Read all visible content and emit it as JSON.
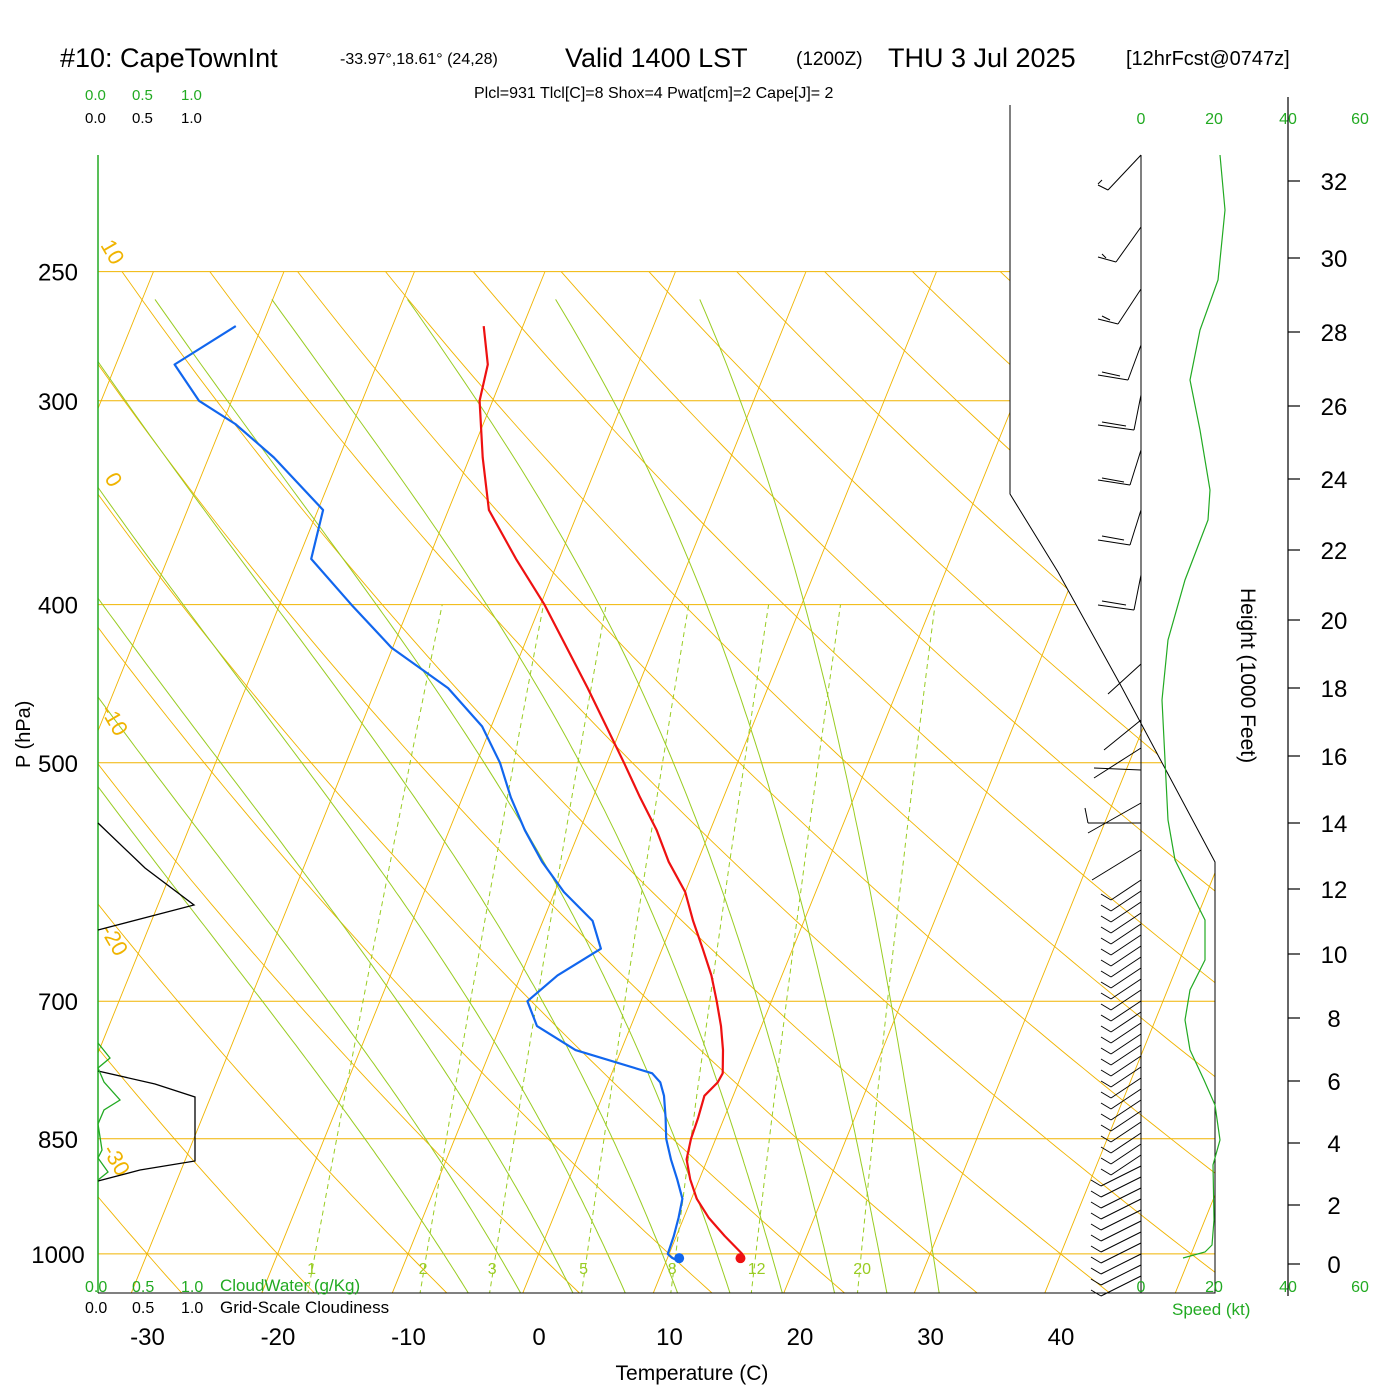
{
  "header": {
    "station": "#10: CapeTownInt",
    "coords": "-33.97°,18.61° (24,28)",
    "valid": "Valid 1400 LST",
    "zulu": "(1200Z)",
    "date": "THU 3 Jul 2025",
    "forecast": "[12hrFcst@0747z]",
    "indices": "Plcl=931 Tlcl[C]=8 Shox=4 Pwat[cm]=2 Cape[J]= 2"
  },
  "cloud_scales": {
    "ticks": [
      "0.0",
      "0.5",
      "1.0"
    ],
    "cloudwater_label": "CloudWater (g/Kg)",
    "cloudiness_label": "Grid-Scale Cloudiness"
  },
  "colors": {
    "temperature": "#ee1111",
    "dewpoint": "#1166ee",
    "isotherm": "#f0b400",
    "dry_adiabat": "#f0b400",
    "moist_adiabat": "#99cc22",
    "mixing_ratio": "#99cc22",
    "cloudwater": "#22aa22",
    "speed": "#22aa22",
    "indices": "#aa0044",
    "axis": "#000000"
  },
  "chart_data": {
    "type": "skew-t log-p sounding",
    "xlabel": "Temperature (C)",
    "ylabel": "P (hPa)",
    "x_ticks": [
      -30,
      -20,
      -10,
      0,
      10,
      20,
      30,
      40
    ],
    "p_ticks": [
      250,
      300,
      400,
      500,
      700,
      850,
      1000
    ],
    "xlim": [
      -34,
      36
    ],
    "plim": [
      250,
      1020
    ],
    "skew": "isotherms tilted to the right",
    "isotherm_labels": [
      "10",
      "0",
      "-10",
      "-20",
      "-30",
      "0",
      "10",
      "20",
      "30"
    ],
    "mixing_ratio_lines_g_per_kg": [
      1,
      2,
      3,
      5,
      8,
      12,
      20
    ],
    "height_axis": {
      "label": "Height (1000 Feet)",
      "ticks": [
        0,
        2,
        4,
        6,
        8,
        10,
        12,
        14,
        16,
        18,
        20,
        22,
        24,
        26,
        28,
        30,
        32
      ]
    },
    "speed_axis": {
      "label": "Speed (kt)",
      "ticks": [
        0,
        20,
        40,
        60
      ]
    },
    "series": [
      {
        "kind": "temperature",
        "points": [
          {
            "p": 1010,
            "t": 15.8
          },
          {
            "p": 1000,
            "t": 15.6
          },
          {
            "p": 975,
            "t": 13.7
          },
          {
            "p": 950,
            "t": 11.9
          },
          {
            "p": 925,
            "t": 10.4
          },
          {
            "p": 900,
            "t": 9.3
          },
          {
            "p": 875,
            "t": 8.4
          },
          {
            "p": 850,
            "t": 8.1
          },
          {
            "p": 825,
            "t": 8.0
          },
          {
            "p": 800,
            "t": 7.8
          },
          {
            "p": 785,
            "t": 8.4
          },
          {
            "p": 775,
            "t": 8.5
          },
          {
            "p": 750,
            "t": 7.8
          },
          {
            "p": 725,
            "t": 6.9
          },
          {
            "p": 700,
            "t": 5.8
          },
          {
            "p": 675,
            "t": 4.6
          },
          {
            "p": 650,
            "t": 3.1
          },
          {
            "p": 625,
            "t": 1.5
          },
          {
            "p": 600,
            "t": 0.0
          },
          {
            "p": 575,
            "t": -2.2
          },
          {
            "p": 550,
            "t": -4.1
          },
          {
            "p": 525,
            "t": -6.4
          },
          {
            "p": 500,
            "t": -8.7
          },
          {
            "p": 450,
            "t": -13.8
          },
          {
            "p": 400,
            "t": -19.7
          },
          {
            "p": 375,
            "t": -23.3
          },
          {
            "p": 350,
            "t": -26.9
          },
          {
            "p": 325,
            "t": -29.0
          },
          {
            "p": 300,
            "t": -31.0
          },
          {
            "p": 285,
            "t": -31.5
          },
          {
            "p": 270,
            "t": -33.0
          }
        ]
      },
      {
        "kind": "dewpoint",
        "points": [
          {
            "p": 1010,
            "t": 10.9
          },
          {
            "p": 1005,
            "t": 10.3
          },
          {
            "p": 1000,
            "t": 9.9
          },
          {
            "p": 975,
            "t": 9.8
          },
          {
            "p": 950,
            "t": 9.6
          },
          {
            "p": 925,
            "t": 9.3
          },
          {
            "p": 900,
            "t": 8.3
          },
          {
            "p": 875,
            "t": 7.2
          },
          {
            "p": 850,
            "t": 6.2
          },
          {
            "p": 825,
            "t": 5.5
          },
          {
            "p": 800,
            "t": 4.7
          },
          {
            "p": 785,
            "t": 4.0
          },
          {
            "p": 775,
            "t": 3.1
          },
          {
            "p": 750,
            "t": -3.5
          },
          {
            "p": 725,
            "t": -7.2
          },
          {
            "p": 700,
            "t": -8.7
          },
          {
            "p": 675,
            "t": -7.2
          },
          {
            "p": 650,
            "t": -4.7
          },
          {
            "p": 625,
            "t": -6.2
          },
          {
            "p": 600,
            "t": -9.3
          },
          {
            "p": 575,
            "t": -11.9
          },
          {
            "p": 550,
            "t": -14.2
          },
          {
            "p": 525,
            "t": -16.3
          },
          {
            "p": 500,
            "t": -18.2
          },
          {
            "p": 475,
            "t": -20.7
          },
          {
            "p": 450,
            "t": -24.5
          },
          {
            "p": 425,
            "t": -30.1
          },
          {
            "p": 400,
            "t": -34.5
          },
          {
            "p": 375,
            "t": -39.0
          },
          {
            "p": 350,
            "t": -39.6
          },
          {
            "p": 325,
            "t": -45.0
          },
          {
            "p": 310,
            "t": -49.0
          },
          {
            "p": 300,
            "t": -52.5
          },
          {
            "p": 285,
            "t": -55.5
          },
          {
            "p": 270,
            "t": -52.0
          }
        ]
      }
    ],
    "surface_markers": [
      {
        "kind": "temperature",
        "p": 1006,
        "t": 15.6
      },
      {
        "kind": "dewpoint",
        "p": 1006,
        "t": 10.9
      }
    ]
  }
}
